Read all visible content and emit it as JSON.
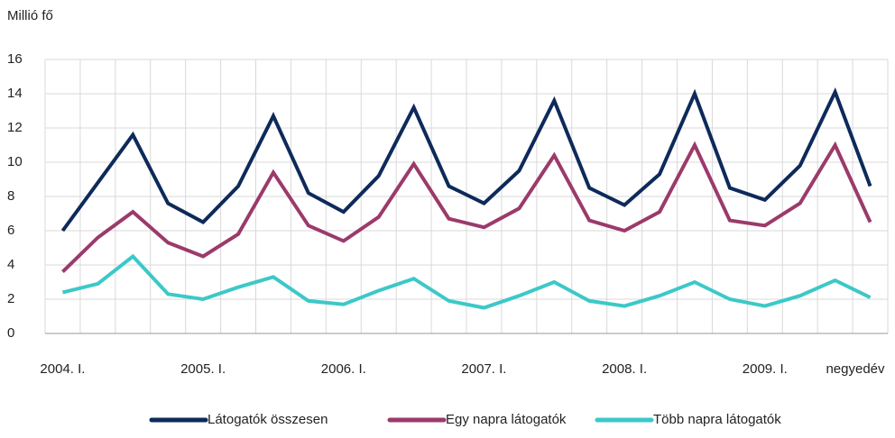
{
  "chart_data": {
    "type": "line",
    "y_label": "Millió fő",
    "x_label": "negyedév",
    "categories": [
      "2004. I.",
      null,
      null,
      null,
      "2005. I.",
      null,
      null,
      null,
      "2006. I.",
      null,
      null,
      null,
      "2007. I.",
      null,
      null,
      null,
      "2008. I.",
      null,
      null,
      null,
      "2009. I.",
      null,
      null,
      null
    ],
    "series": [
      {
        "name": "Látogatók összesen",
        "color": "#0d2a5a",
        "values": [
          6.0,
          8.8,
          11.6,
          7.6,
          6.5,
          8.6,
          12.7,
          8.2,
          7.1,
          9.2,
          13.2,
          8.6,
          7.6,
          9.5,
          13.6,
          8.5,
          7.5,
          9.3,
          14.0,
          8.5,
          7.8,
          9.8,
          14.1,
          8.6
        ]
      },
      {
        "name": "Egy  napra látogatók",
        "color": "#9b3a6b",
        "values": [
          3.6,
          5.6,
          7.1,
          5.3,
          4.5,
          5.8,
          9.4,
          6.3,
          5.4,
          6.8,
          9.9,
          6.7,
          6.2,
          7.3,
          10.4,
          6.6,
          6.0,
          7.1,
          11.0,
          6.6,
          6.3,
          7.6,
          11.0,
          6.5
        ]
      },
      {
        "name": "Több napra látogatók",
        "color": "#3cc8c8",
        "values": [
          2.4,
          2.9,
          4.5,
          2.3,
          2.0,
          2.7,
          3.3,
          1.9,
          1.7,
          2.5,
          3.2,
          1.9,
          1.5,
          2.2,
          3.0,
          1.9,
          1.6,
          2.2,
          3.0,
          2.0,
          1.6,
          2.2,
          3.1,
          2.1
        ]
      }
    ],
    "ylim": [
      0,
      16
    ],
    "yticks": [
      0,
      2,
      4,
      6,
      8,
      10,
      12,
      14,
      16
    ],
    "grid": true,
    "legend": "bottom"
  }
}
